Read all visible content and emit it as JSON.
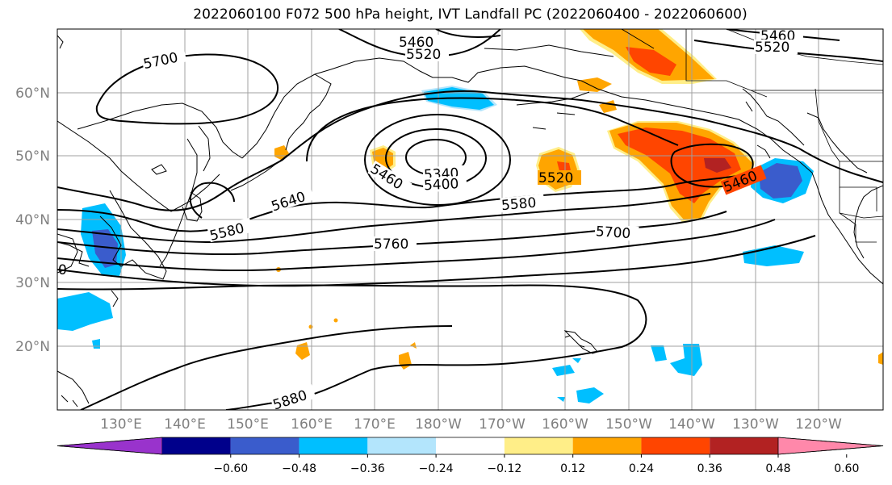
{
  "title": "2022060100 F072 500 hPa height, IVT Landfall PC (2022060400 - 2022060600)",
  "map": {
    "lat_labels": [
      "60°N",
      "50°N",
      "40°N",
      "30°N",
      "20°N"
    ],
    "lon_labels": [
      "130°E",
      "140°E",
      "150°E",
      "160°E",
      "170°E",
      "180°W",
      "170°W",
      "160°W",
      "150°W",
      "140°W",
      "130°W",
      "120°W"
    ],
    "contour_labels": [
      "5460",
      "5520",
      "5700",
      "5460",
      "5520",
      "5340",
      "5400",
      "5460",
      "5520",
      "5640",
      "5580",
      "5580",
      "5760",
      "5700",
      "5460",
      "5880",
      "0"
    ]
  },
  "colorbar": {
    "ticks": [
      "−0.60",
      "−0.48",
      "−0.36",
      "−0.24",
      "−0.12",
      "0.12",
      "0.24",
      "0.36",
      "0.48",
      "0.60"
    ],
    "colors": [
      "#9933cc",
      "#00008b",
      "#3a5ccc",
      "#00bfff",
      "#b3e5fc",
      "#ffffff",
      "#ffee88",
      "#ffa500",
      "#ff4500",
      "#b22222",
      "#ff88aa"
    ]
  }
}
